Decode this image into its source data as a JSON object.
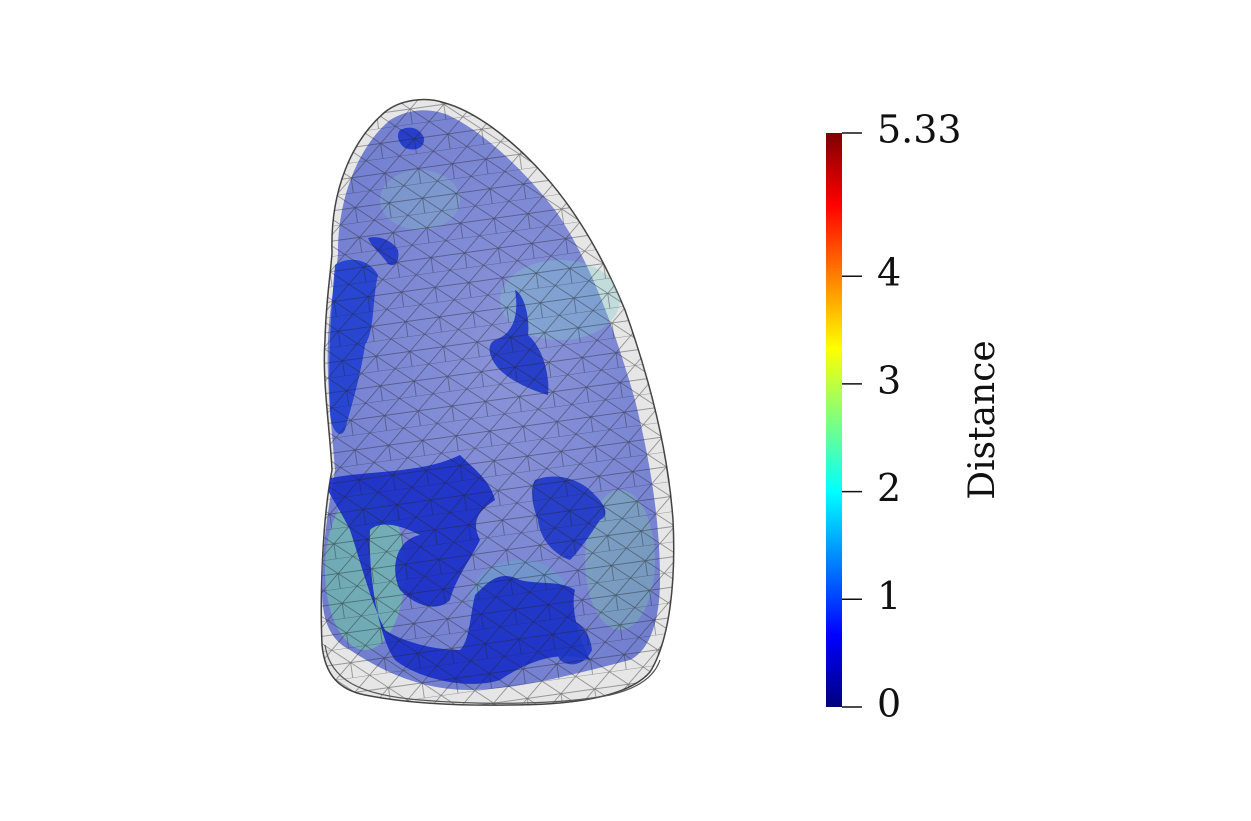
{
  "scene": {
    "object": "lung-mesh",
    "background_color": "#ffffff"
  },
  "colorbar": {
    "title": "Distance",
    "min": 0,
    "max": 5.33,
    "ticks": [
      {
        "value": 5.33,
        "label": "5.33"
      },
      {
        "value": 4,
        "label": "4"
      },
      {
        "value": 3,
        "label": "3"
      },
      {
        "value": 2,
        "label": "2"
      },
      {
        "value": 1,
        "label": "1"
      },
      {
        "value": 0,
        "label": "0"
      }
    ],
    "colormap": [
      "#00007f",
      "#0000ff",
      "#007fff",
      "#00ffff",
      "#7fff7f",
      "#ffff00",
      "#ff7f00",
      "#ff0000",
      "#7f0000"
    ]
  }
}
